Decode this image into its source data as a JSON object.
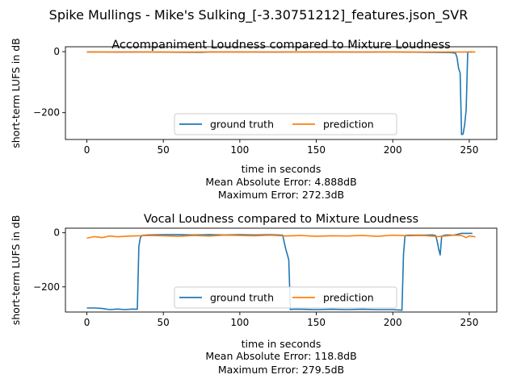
{
  "figure": {
    "suptitle": "Spike Mullings - Mike's Sulking_[-3.30751212]_features.json_SVR"
  },
  "colors": {
    "ground_truth": "#1f77b4",
    "prediction": "#ff7f0e"
  },
  "chart_data": [
    {
      "type": "line",
      "title": "Accompaniment Loudness compared to Mixture Loudness",
      "xlabel": "time in seconds",
      "ylabel": "short-term LUFS in dB",
      "xlim": [
        -14,
        268
      ],
      "ylim": [
        -288,
        16
      ],
      "xticks": [
        0,
        50,
        100,
        150,
        200,
        250
      ],
      "yticks": [
        0,
        -200
      ],
      "legend": {
        "position": "lower center",
        "ncol": 2
      },
      "stats": [
        "Mean Absolute Error: 4.888dB",
        "Maximum Error: 272.3dB"
      ],
      "series": [
        {
          "name": "ground truth",
          "x": [
            0,
            20,
            40,
            60,
            75,
            80,
            100,
            120,
            140,
            160,
            180,
            200,
            220,
            238,
            241,
            242,
            243,
            244,
            245,
            246,
            247,
            248,
            249,
            250,
            251,
            252
          ],
          "y": [
            -1,
            -1.5,
            -1,
            -2,
            -2.5,
            -1,
            -1,
            -1.5,
            -1,
            -1,
            -1.5,
            -1,
            -2,
            -3,
            -5,
            -20,
            -55,
            -70,
            -272,
            -270,
            -240,
            -190,
            -1,
            -1,
            -1,
            -1
          ]
        },
        {
          "name": "prediction",
          "x": [
            0,
            20,
            40,
            60,
            80,
            100,
            120,
            140,
            160,
            180,
            200,
            220,
            240,
            245,
            250,
            254
          ],
          "y": [
            -1,
            -1.2,
            -0.8,
            -1.5,
            -1,
            -1,
            -1.2,
            -1,
            -1,
            -1.2,
            -1,
            -1.2,
            -1,
            -1.5,
            -1,
            -1
          ]
        }
      ]
    },
    {
      "type": "line",
      "title": "Vocal Loudness compared to Mixture Loudness",
      "xlabel": "time in seconds",
      "ylabel": "short-term LUFS in dB",
      "xlim": [
        -14,
        268
      ],
      "ylim": [
        -293,
        17
      ],
      "xticks": [
        0,
        50,
        100,
        150,
        200,
        250
      ],
      "yticks": [
        0,
        -200
      ],
      "legend": {
        "position": "lower center",
        "ncol": 2
      },
      "stats": [
        "Mean Absolute Error: 118.8dB",
        "Maximum Error: 279.5dB"
      ],
      "series": [
        {
          "name": "ground truth",
          "x": [
            0,
            5,
            10,
            15,
            20,
            25,
            30,
            33,
            34,
            35,
            36,
            40,
            50,
            60,
            70,
            80,
            90,
            100,
            110,
            120,
            125,
            128,
            130,
            131,
            132,
            133,
            135,
            140,
            150,
            160,
            170,
            180,
            190,
            200,
            206,
            207,
            208,
            210,
            220,
            226,
            228,
            229,
            230,
            231,
            232,
            235,
            240,
            245,
            250,
            252
          ],
          "y": [
            -278,
            -278,
            -280,
            -284,
            -282,
            -284,
            -282,
            -283,
            -50,
            -18,
            -10,
            -8,
            -7,
            -7,
            -8,
            -7,
            -8,
            -7,
            -8,
            -7,
            -8,
            -9,
            -60,
            -80,
            -100,
            -284,
            -283,
            -283,
            -284,
            -283,
            -284,
            -283,
            -284,
            -284,
            -286,
            -80,
            -10,
            -9,
            -9,
            -8,
            -10,
            -30,
            -60,
            -82,
            -12,
            -8,
            -9,
            -2,
            -2,
            -2
          ]
        },
        {
          "name": "prediction",
          "x": [
            0,
            5,
            10,
            15,
            20,
            25,
            30,
            40,
            50,
            60,
            70,
            80,
            90,
            100,
            110,
            120,
            130,
            140,
            150,
            160,
            170,
            180,
            190,
            200,
            210,
            220,
            230,
            240,
            245,
            248,
            250,
            254
          ],
          "y": [
            -20,
            -14,
            -18,
            -12,
            -15,
            -13,
            -12,
            -10,
            -11,
            -13,
            -10,
            -12,
            -9,
            -10,
            -11,
            -9,
            -12,
            -10,
            -13,
            -11,
            -12,
            -10,
            -13,
            -9,
            -11,
            -10,
            -14,
            -9,
            -10,
            -18,
            -12,
            -15
          ]
        }
      ]
    }
  ]
}
